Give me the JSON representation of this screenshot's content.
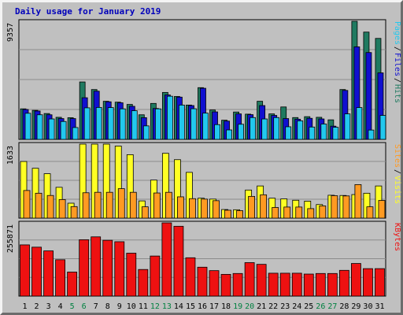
{
  "chart_data": {
    "type": "bar",
    "title": "Daily usage for January 2019",
    "title_color": "#0000bb",
    "x": [
      "1",
      "2",
      "3",
      "4",
      "5",
      "6",
      "7",
      "8",
      "9",
      "10",
      "11",
      "12",
      "13",
      "14",
      "15",
      "16",
      "17",
      "18",
      "19",
      "20",
      "21",
      "22",
      "23",
      "24",
      "25",
      "26",
      "27",
      "28",
      "29",
      "30",
      "31"
    ],
    "weekend_days": [
      "5",
      "6",
      "12",
      "13",
      "19",
      "20",
      "26",
      "27"
    ],
    "weekend_color": "#008040",
    "weekday_color": "#000000",
    "panels": [
      {
        "name": "top",
        "ymax_label": "9357",
        "ymax": 9357,
        "series": [
          {
            "name": "Hits",
            "color": "#1f7a60",
            "values": [
              2420,
              2300,
              2050,
              1750,
              1720,
              4550,
              3950,
              3020,
              2950,
              2770,
              1950,
              2850,
              3720,
              3400,
              2720,
              4100,
              2330,
              1520,
              2170,
              2000,
              3020,
              2020,
              2570,
              1730,
              1800,
              1750,
              1550,
              3950,
              9357,
              8500,
              8000
            ]
          },
          {
            "name": "Files",
            "color": "#1010d0",
            "values": [
              2370,
              2250,
              1950,
              1650,
              1650,
              3300,
              3820,
              2980,
              2900,
              2620,
              1720,
              2450,
              3520,
              3350,
              2680,
              4050,
              2180,
              1450,
              2020,
              1960,
              2680,
              1900,
              1650,
              1600,
              1670,
              1620,
              1050,
              3880,
              7330,
              6880,
              5270
            ]
          },
          {
            "name": "Pages",
            "color": "#22c8ee",
            "values": [
              2070,
              1950,
              1620,
              1420,
              940,
              2500,
              2530,
              2520,
              2420,
              2270,
              1070,
              2420,
              3420,
              2720,
              2430,
              2080,
              1170,
              750,
              1200,
              1730,
              1620,
              1730,
              1000,
              1470,
              980,
              1220,
              960,
              2020,
              2520,
              740,
              1900
            ]
          }
        ],
        "legend": [
          "Pages",
          "Files",
          "Hits"
        ],
        "legend_colors": [
          "#22c8ee",
          "#1010d0",
          "#1f7a60"
        ]
      },
      {
        "name": "middle",
        "ymax_label": "1633",
        "ymax": 1633,
        "series": [
          {
            "name": "Visits",
            "color": "#ffff24",
            "values": [
              1250,
              1100,
              980,
              680,
              330,
              1633,
              1633,
              1633,
              1590,
              1400,
              380,
              840,
              1430,
              1290,
              1010,
              440,
              420,
              190,
              185,
              620,
              710,
              440,
              425,
              395,
              375,
              300,
              505,
              500,
              520,
              550,
              710
            ]
          },
          {
            "name": "Sites",
            "color": "#ff9a22",
            "values": [
              610,
              550,
              500,
              410,
              255,
              560,
              570,
              570,
              650,
              570,
              250,
              555,
              570,
              470,
              430,
              420,
              385,
              175,
              165,
              480,
              515,
              235,
              245,
              245,
              210,
              270,
              495,
              490,
              740,
              250,
              390
            ]
          }
        ],
        "legend": [
          "Sites",
          "Visits"
        ],
        "legend_colors": [
          "#ff9a22",
          "#ffff24"
        ]
      },
      {
        "name": "bottom",
        "ymax_label": "255871",
        "ymax": 255871,
        "series": [
          {
            "name": "KBytes",
            "color": "#ee1111",
            "values": [
              179000,
              171000,
              158000,
              127000,
              84000,
              197000,
              207000,
              195000,
              190000,
              150000,
              93000,
              140000,
              255871,
              244000,
              134000,
              101000,
              89000,
              76000,
              79000,
              117000,
              111000,
              80000,
              80000,
              80000,
              77000,
              79000,
              79000,
              90000,
              114000,
              96000,
              96000
            ]
          }
        ],
        "legend": [
          "KBytes"
        ],
        "legend_colors": [
          "#ee1111"
        ]
      }
    ],
    "grid": true
  }
}
